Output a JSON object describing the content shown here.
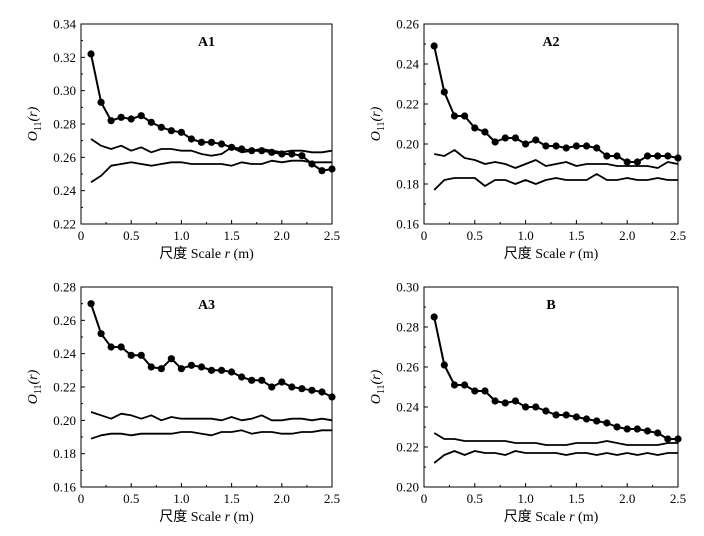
{
  "chart_data": [
    {
      "type": "line",
      "title": "A1",
      "xlabel_prefix": "尺度 Scale ",
      "xlabel_var": "r",
      "xlabel_suffix": " (m)",
      "ylabel_main": "O",
      "ylabel_sub": "11",
      "ylabel_arg": "(r)",
      "xlim": [
        0,
        2.5
      ],
      "ylim": [
        0.22,
        0.34
      ],
      "xticks": [
        "0",
        "0.5",
        "1.0",
        "1.5",
        "2.0",
        "2.5"
      ],
      "yticks": [
        "0.22",
        "0.24",
        "0.26",
        "0.28",
        "0.30",
        "0.32",
        "0.34"
      ],
      "x": [
        0.1,
        0.2,
        0.3,
        0.4,
        0.5,
        0.6,
        0.7,
        0.8,
        0.9,
        1.0,
        1.1,
        1.2,
        1.3,
        1.4,
        1.5,
        1.6,
        1.7,
        1.8,
        1.9,
        2.0,
        2.1,
        2.2,
        2.3,
        2.4,
        2.5
      ],
      "series": [
        {
          "role": "observed",
          "values": [
            0.322,
            0.293,
            0.282,
            0.284,
            0.283,
            0.285,
            0.281,
            0.278,
            0.276,
            0.275,
            0.271,
            0.269,
            0.269,
            0.268,
            0.266,
            0.265,
            0.264,
            0.264,
            0.263,
            0.262,
            0.262,
            0.261,
            0.256,
            0.252,
            0.253
          ]
        },
        {
          "role": "upper envelope",
          "values": [
            0.271,
            0.267,
            0.265,
            0.267,
            0.264,
            0.266,
            0.263,
            0.265,
            0.265,
            0.264,
            0.264,
            0.262,
            0.261,
            0.262,
            0.266,
            0.263,
            0.264,
            0.265,
            0.264,
            0.263,
            0.264,
            0.264,
            0.263,
            0.263,
            0.264
          ]
        },
        {
          "role": "lower envelope",
          "values": [
            0.245,
            0.249,
            0.255,
            0.256,
            0.257,
            0.256,
            0.255,
            0.256,
            0.257,
            0.257,
            0.256,
            0.256,
            0.256,
            0.256,
            0.255,
            0.257,
            0.256,
            0.256,
            0.258,
            0.257,
            0.258,
            0.258,
            0.257,
            0.257,
            0.257
          ]
        }
      ]
    },
    {
      "type": "line",
      "title": "A2",
      "xlabel_prefix": "尺度 Scale ",
      "xlabel_var": "r",
      "xlabel_suffix": " (m)",
      "ylabel_main": "O",
      "ylabel_sub": "11",
      "ylabel_arg": "(r)",
      "xlim": [
        0,
        2.5
      ],
      "ylim": [
        0.16,
        0.26
      ],
      "xticks": [
        "0",
        "0.5",
        "1.0",
        "1.5",
        "2.0",
        "2.5"
      ],
      "yticks": [
        "0.16",
        "0.18",
        "0.20",
        "0.22",
        "0.24",
        "0.26"
      ],
      "x": [
        0.1,
        0.2,
        0.3,
        0.4,
        0.5,
        0.6,
        0.7,
        0.8,
        0.9,
        1.0,
        1.1,
        1.2,
        1.3,
        1.4,
        1.5,
        1.6,
        1.7,
        1.8,
        1.9,
        2.0,
        2.1,
        2.2,
        2.3,
        2.4,
        2.5
      ],
      "series": [
        {
          "role": "observed",
          "values": [
            0.249,
            0.226,
            0.214,
            0.214,
            0.208,
            0.206,
            0.201,
            0.203,
            0.203,
            0.2,
            0.202,
            0.199,
            0.199,
            0.198,
            0.199,
            0.199,
            0.198,
            0.194,
            0.194,
            0.191,
            0.191,
            0.194,
            0.194,
            0.194,
            0.193
          ]
        },
        {
          "role": "upper envelope",
          "values": [
            0.195,
            0.194,
            0.197,
            0.193,
            0.192,
            0.19,
            0.191,
            0.19,
            0.188,
            0.19,
            0.192,
            0.189,
            0.19,
            0.191,
            0.189,
            0.19,
            0.19,
            0.19,
            0.189,
            0.189,
            0.189,
            0.189,
            0.188,
            0.191,
            0.19
          ]
        },
        {
          "role": "lower envelope",
          "values": [
            0.177,
            0.182,
            0.183,
            0.183,
            0.183,
            0.179,
            0.182,
            0.182,
            0.18,
            0.182,
            0.18,
            0.182,
            0.183,
            0.182,
            0.182,
            0.182,
            0.185,
            0.182,
            0.182,
            0.183,
            0.182,
            0.182,
            0.183,
            0.182,
            0.182
          ]
        }
      ]
    },
    {
      "type": "line",
      "title": "A3",
      "xlabel_prefix": "尺度 Scale ",
      "xlabel_var": "r",
      "xlabel_suffix": " (m)",
      "ylabel_main": "O",
      "ylabel_sub": "11",
      "ylabel_arg": "(r)",
      "xlim": [
        0,
        2.5
      ],
      "ylim": [
        0.16,
        0.28
      ],
      "xticks": [
        "0",
        "0.5",
        "1.0",
        "1.5",
        "2.0",
        "2.5"
      ],
      "yticks": [
        "0.16",
        "0.18",
        "0.20",
        "0.22",
        "0.24",
        "0.26",
        "0.28"
      ],
      "x": [
        0.1,
        0.2,
        0.3,
        0.4,
        0.5,
        0.6,
        0.7,
        0.8,
        0.9,
        1.0,
        1.1,
        1.2,
        1.3,
        1.4,
        1.5,
        1.6,
        1.7,
        1.8,
        1.9,
        2.0,
        2.1,
        2.2,
        2.3,
        2.4,
        2.5
      ],
      "series": [
        {
          "role": "observed",
          "values": [
            0.27,
            0.252,
            0.244,
            0.244,
            0.239,
            0.239,
            0.232,
            0.231,
            0.237,
            0.231,
            0.233,
            0.232,
            0.23,
            0.23,
            0.229,
            0.226,
            0.224,
            0.224,
            0.22,
            0.223,
            0.22,
            0.219,
            0.218,
            0.217,
            0.214
          ]
        },
        {
          "role": "upper envelope",
          "values": [
            0.205,
            0.203,
            0.201,
            0.204,
            0.203,
            0.201,
            0.203,
            0.2,
            0.202,
            0.201,
            0.201,
            0.201,
            0.201,
            0.2,
            0.202,
            0.2,
            0.201,
            0.203,
            0.2,
            0.2,
            0.201,
            0.201,
            0.2,
            0.201,
            0.2
          ]
        },
        {
          "role": "lower envelope",
          "values": [
            0.189,
            0.191,
            0.192,
            0.192,
            0.191,
            0.192,
            0.192,
            0.192,
            0.192,
            0.193,
            0.193,
            0.192,
            0.191,
            0.193,
            0.193,
            0.194,
            0.192,
            0.193,
            0.193,
            0.192,
            0.192,
            0.193,
            0.193,
            0.194,
            0.194
          ]
        }
      ]
    },
    {
      "type": "line",
      "title": "B",
      "xlabel_prefix": "尺度 Scale ",
      "xlabel_var": "r",
      "xlabel_suffix": " (m)",
      "ylabel_main": "O",
      "ylabel_sub": "11",
      "ylabel_arg": "(r)",
      "xlim": [
        0,
        2.5
      ],
      "ylim": [
        0.2,
        0.3
      ],
      "xticks": [
        "0",
        "0.5",
        "1.0",
        "1.5",
        "2.0",
        "2.5"
      ],
      "yticks": [
        "0.20",
        "0.22",
        "0.24",
        "0.26",
        "0.28",
        "0.30"
      ],
      "x": [
        0.1,
        0.2,
        0.3,
        0.4,
        0.5,
        0.6,
        0.7,
        0.8,
        0.9,
        1.0,
        1.1,
        1.2,
        1.3,
        1.4,
        1.5,
        1.6,
        1.7,
        1.8,
        1.9,
        2.0,
        2.1,
        2.2,
        2.3,
        2.4,
        2.5
      ],
      "series": [
        {
          "role": "observed",
          "values": [
            0.285,
            0.261,
            0.251,
            0.251,
            0.248,
            0.248,
            0.243,
            0.242,
            0.243,
            0.24,
            0.24,
            0.238,
            0.236,
            0.236,
            0.235,
            0.234,
            0.233,
            0.232,
            0.23,
            0.229,
            0.229,
            0.228,
            0.227,
            0.224,
            0.224
          ]
        },
        {
          "role": "upper envelope",
          "values": [
            0.227,
            0.224,
            0.224,
            0.223,
            0.223,
            0.223,
            0.223,
            0.223,
            0.222,
            0.222,
            0.222,
            0.221,
            0.221,
            0.221,
            0.222,
            0.222,
            0.222,
            0.223,
            0.222,
            0.221,
            0.221,
            0.221,
            0.221,
            0.222,
            0.222
          ]
        },
        {
          "role": "lower envelope",
          "values": [
            0.212,
            0.216,
            0.218,
            0.216,
            0.218,
            0.217,
            0.217,
            0.216,
            0.218,
            0.217,
            0.217,
            0.217,
            0.217,
            0.216,
            0.217,
            0.217,
            0.216,
            0.217,
            0.216,
            0.217,
            0.216,
            0.217,
            0.216,
            0.217,
            0.217
          ]
        }
      ]
    }
  ]
}
